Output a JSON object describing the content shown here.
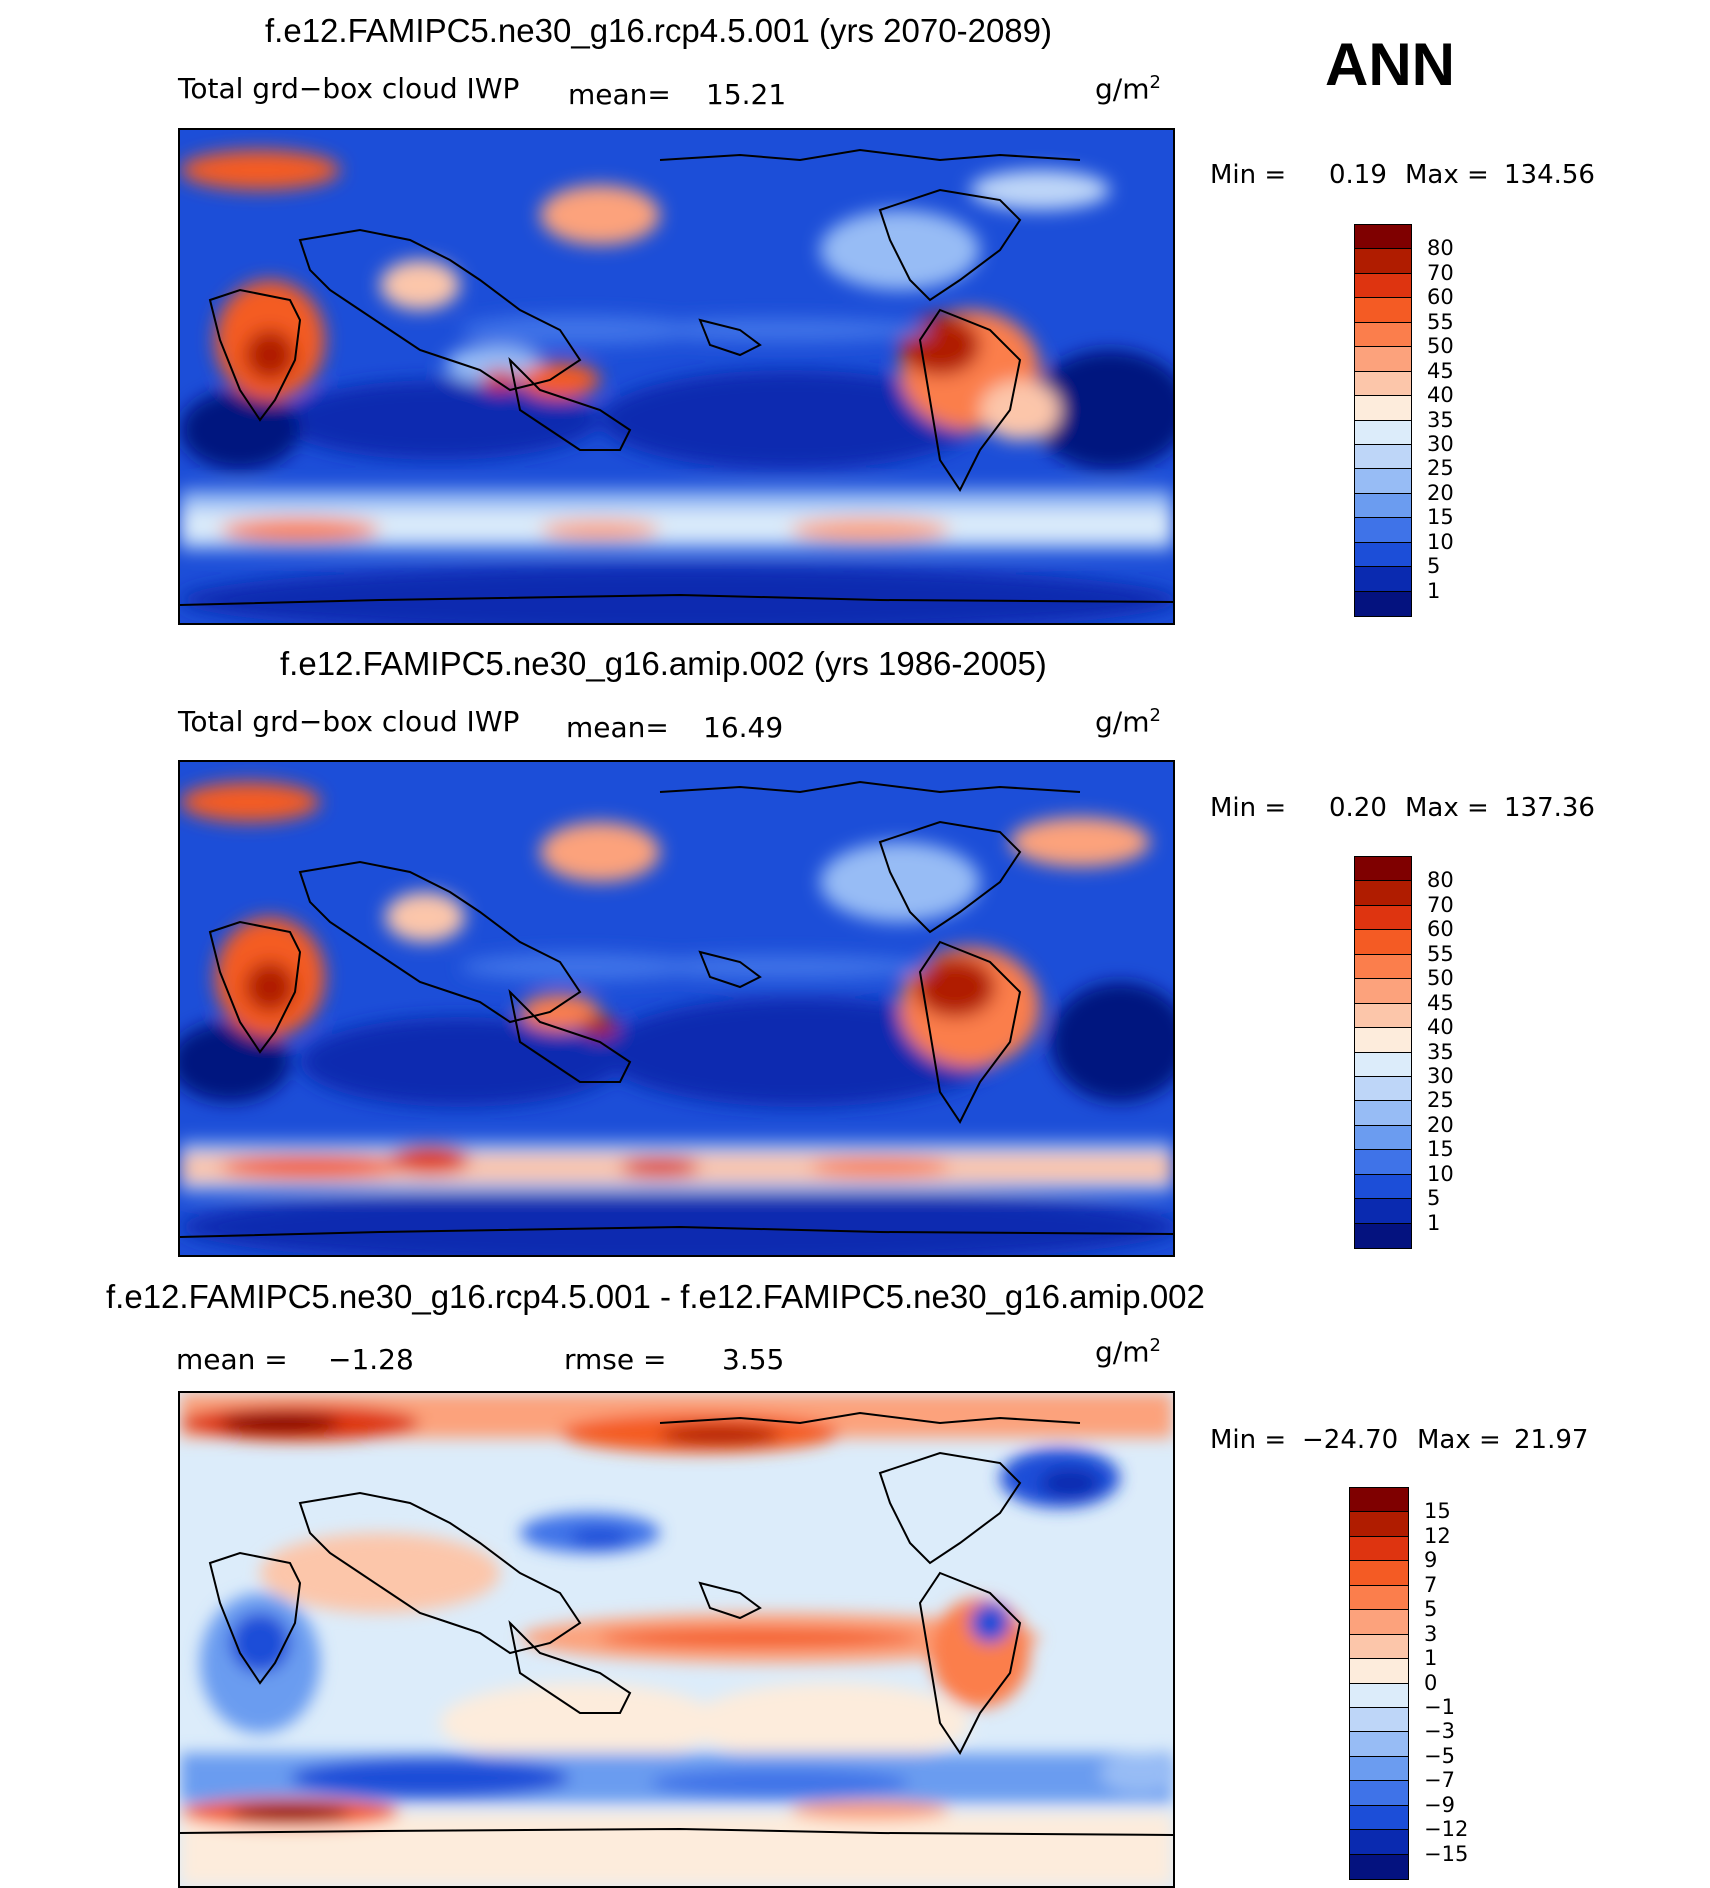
{
  "season": "ANN",
  "panels": [
    {
      "title": "f.e12.FAMIPC5.ne30_g16.rcp4.5.001 (yrs 2070-2089)",
      "variable": "Total grd−box cloud IWP",
      "mean_label": "mean=",
      "mean_value": "15.21",
      "units": "g/m",
      "units_exp": "2",
      "min_label": "Min =",
      "min_value": "0.19",
      "max_label": "Max =",
      "max_value": "134.56",
      "colorbar_ticks": [
        "80",
        "70",
        "60",
        "55",
        "50",
        "45",
        "40",
        "35",
        "30",
        "25",
        "20",
        "15",
        "10",
        "5",
        "1"
      ],
      "colorbar_colors": [
        "#7f0000",
        "#b01c00",
        "#de3410",
        "#f45b24",
        "#fb7e4c",
        "#fca27c",
        "#fcc6aa",
        "#fdecdc",
        "#dcecfa",
        "#bed6f8",
        "#97bcf5",
        "#6b9cf0",
        "#3f73e8",
        "#1c4ed8",
        "#0a2ab0",
        "#04127f"
      ]
    },
    {
      "title": "f.e12.FAMIPC5.ne30_g16.amip.002 (yrs 1986-2005)",
      "variable": "Total grd−box cloud IWP",
      "mean_label": "mean=",
      "mean_value": "16.49",
      "units": "g/m",
      "units_exp": "2",
      "min_label": "Min =",
      "min_value": "0.20",
      "max_label": "Max =",
      "max_value": "137.36",
      "colorbar_ticks": [
        "80",
        "70",
        "60",
        "55",
        "50",
        "45",
        "40",
        "35",
        "30",
        "25",
        "20",
        "15",
        "10",
        "5",
        "1"
      ],
      "colorbar_colors": [
        "#7f0000",
        "#b01c00",
        "#de3410",
        "#f45b24",
        "#fb7e4c",
        "#fca27c",
        "#fcc6aa",
        "#fdecdc",
        "#dcecfa",
        "#bed6f8",
        "#97bcf5",
        "#6b9cf0",
        "#3f73e8",
        "#1c4ed8",
        "#0a2ab0",
        "#04127f"
      ]
    },
    {
      "title": "f.e12.FAMIPC5.ne30_g16.rcp4.5.001 - f.e12.FAMIPC5.ne30_g16.amip.002",
      "mean_label": "mean =",
      "mean_value": "−1.28",
      "rmse_label": "rmse =",
      "rmse_value": "3.55",
      "units": "g/m",
      "units_exp": "2",
      "min_label": "Min =",
      "min_value": "−24.70",
      "max_label": "Max =",
      "max_value": "21.97",
      "colorbar_ticks": [
        "15",
        "12",
        "9",
        "7",
        "5",
        "3",
        "1",
        "0",
        "−1",
        "−3",
        "−5",
        "−7",
        "−9",
        "−12",
        "−15"
      ],
      "colorbar_colors": [
        "#7f0000",
        "#b01c00",
        "#de3410",
        "#f45b24",
        "#fb7e4c",
        "#fca27c",
        "#fcc6aa",
        "#fdecdc",
        "#dcecfa",
        "#bed6f8",
        "#97bcf5",
        "#6b9cf0",
        "#3f73e8",
        "#1c4ed8",
        "#0a2ab0",
        "#04127f"
      ]
    }
  ]
}
